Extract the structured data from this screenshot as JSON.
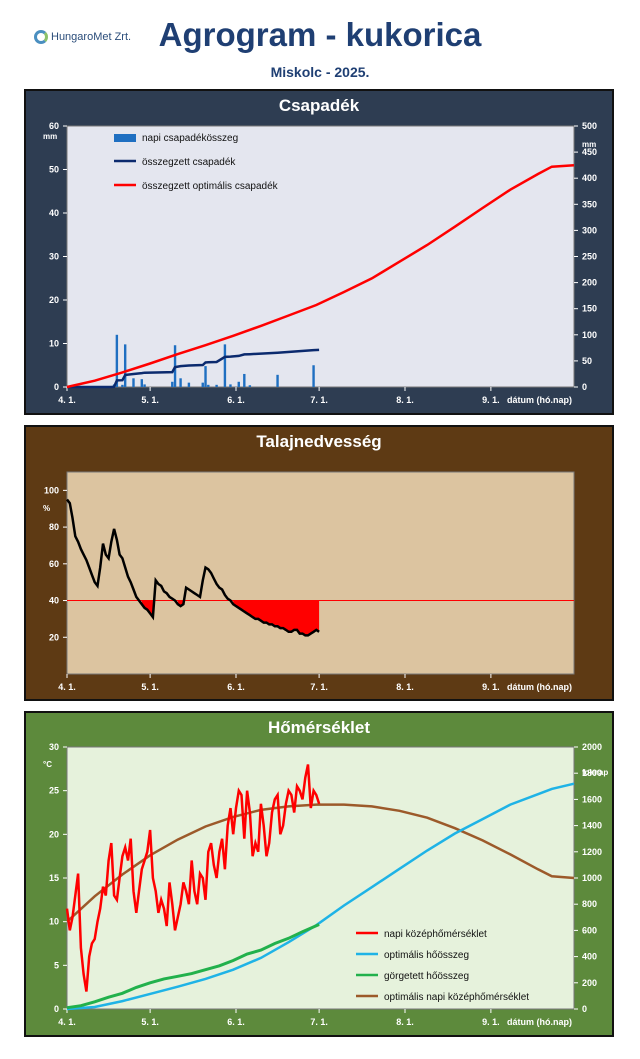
{
  "header": {
    "logo_text": "HungaroMet Zrt.",
    "title": "Agrogram - kukorica",
    "subtitle": "Miskolc  - 2025."
  },
  "x_ticks": [
    "4. 1.",
    "5. 1.",
    "6. 1.",
    "7. 1.",
    "8. 1.",
    "9. 1."
  ],
  "x_label": "dátum (hó.nap)",
  "chart_data": [
    {
      "type": "bar",
      "title": "Csapadék",
      "xlabel": "dátum (hó.nap)",
      "ylabel": "mm",
      "ylabel_right": "mm",
      "ylim": [
        0,
        60
      ],
      "ylim_right": [
        0,
        500
      ],
      "yticks": [
        0,
        10,
        20,
        30,
        40,
        50,
        60
      ],
      "yticks_right": [
        0,
        50,
        100,
        150,
        200,
        250,
        300,
        350,
        400,
        450,
        500
      ],
      "legend_position": "top-left",
      "colors": {
        "bg": "#2e3d52",
        "plot": "#e4e6ef",
        "bar": "#1f6fc1",
        "sum": "#0b2a6e",
        "opt": "#ff0000"
      },
      "series": [
        {
          "name": "napi csapadékösszeg",
          "axis": "left",
          "x": [
            17,
            18,
            20,
            21,
            24,
            27,
            28,
            38,
            39,
            41,
            44,
            49,
            50,
            51,
            54,
            57,
            59,
            62,
            64,
            66,
            76,
            89
          ],
          "values": [
            0.6,
            12.0,
            0.5,
            9.8,
            2.0,
            1.8,
            0.6,
            1.2,
            9.6,
            2.0,
            1.0,
            1.0,
            4.8,
            0.5,
            0.5,
            9.8,
            0.6,
            1.2,
            3.0,
            0.4,
            2.8,
            5.0
          ]
        },
        {
          "name": "összegzett csapadék",
          "axis": "right",
          "x": [
            0,
            16,
            17,
            18,
            20,
            21,
            24,
            27,
            28,
            38,
            39,
            41,
            44,
            49,
            50,
            51,
            54,
            57,
            59,
            62,
            64,
            66,
            76,
            89,
            91
          ],
          "values": [
            0,
            0,
            0.6,
            12.6,
            13.1,
            22.9,
            24.9,
            26.7,
            27.3,
            28.5,
            38.1,
            40.1,
            41.1,
            42.1,
            46.9,
            47.4,
            47.9,
            57.7,
            58.3,
            59.5,
            62.5,
            62.9,
            65.7,
            70.7,
            71
          ]
        },
        {
          "name": "összegzett optimális csapadék",
          "axis": "right",
          "x": [
            0,
            10,
            20,
            30,
            40,
            50,
            60,
            70,
            80,
            90,
            100,
            110,
            120,
            130,
            140,
            150,
            160,
            170,
            175,
            183
          ],
          "values": [
            0,
            12,
            28,
            45,
            63,
            80,
            98,
            117,
            137,
            157,
            182,
            208,
            240,
            272,
            307,
            343,
            378,
            408,
            422,
            425
          ]
        }
      ]
    },
    {
      "type": "line",
      "title": "Talajnedvesség",
      "xlabel": "dátum (hó.nap)",
      "ylabel": "%",
      "ylim": [
        0,
        110
      ],
      "yticks": [
        20,
        40,
        60,
        80,
        100
      ],
      "threshold": 40,
      "colors": {
        "bg": "#5e3a14",
        "plot": "#dcc4a0",
        "line": "#000000",
        "threshold": "#ff0000",
        "fill": "#ff0000"
      },
      "series": [
        {
          "name": "talajnedvesség",
          "x": [
            0,
            1,
            2,
            3,
            4,
            5,
            6,
            7,
            8,
            9,
            10,
            11,
            12,
            13,
            14,
            15,
            16,
            17,
            18,
            19,
            20,
            21,
            22,
            23,
            24,
            25,
            26,
            27,
            28,
            29,
            30,
            31,
            32,
            33,
            34,
            35,
            36,
            37,
            38,
            39,
            40,
            41,
            42,
            43,
            44,
            45,
            46,
            47,
            48,
            49,
            50,
            51,
            52,
            53,
            54,
            55,
            56,
            57,
            58,
            59,
            60,
            61,
            62,
            63,
            64,
            65,
            66,
            67,
            68,
            69,
            70,
            71,
            72,
            73,
            74,
            75,
            76,
            77,
            78,
            79,
            80,
            81,
            82,
            83,
            84,
            85,
            86,
            87,
            88,
            89,
            90,
            91
          ],
          "values": [
            95,
            93,
            85,
            75,
            72,
            68,
            65,
            62,
            58,
            54,
            50,
            48,
            58,
            71,
            65,
            63,
            72,
            79,
            73,
            65,
            63,
            58,
            53,
            50,
            46,
            42,
            40,
            38,
            36,
            35,
            33,
            31,
            51,
            49,
            48,
            45,
            44,
            42,
            41,
            40,
            38,
            37,
            38,
            47,
            46,
            45,
            44,
            43,
            42,
            51,
            58,
            57,
            55,
            52,
            49,
            47,
            46,
            43,
            41,
            40,
            38,
            37,
            36,
            35,
            34,
            33,
            32,
            31,
            30,
            30,
            29,
            28,
            28,
            27,
            27,
            26,
            26,
            25,
            25,
            24,
            23,
            23,
            24,
            24,
            22,
            22,
            21,
            21,
            22,
            23,
            24,
            23
          ]
        }
      ]
    },
    {
      "type": "line",
      "title": "Hőmérséklet",
      "xlabel": "dátum (hó.nap)",
      "ylabel": "°C",
      "ylabel_right": "foknap",
      "ylim": [
        0,
        30
      ],
      "ylim_right": [
        0,
        2000
      ],
      "yticks": [
        0,
        5,
        10,
        15,
        20,
        25,
        30
      ],
      "yticks_right": [
        0,
        200,
        400,
        600,
        800,
        1000,
        1200,
        1400,
        1600,
        1800,
        2000
      ],
      "legend_position": "bottom-right",
      "colors": {
        "bg": "#5d8a3c",
        "plot": "#e6f2dc",
        "daily": "#ff0000",
        "opt_sum": "#1fb3e6",
        "rolling": "#22b14c",
        "opt_daily": "#9c5a2a"
      },
      "series": [
        {
          "name": "napi középhőmérséklet",
          "axis": "left",
          "x": [
            0,
            1,
            2,
            3,
            4,
            5,
            6,
            7,
            8,
            9,
            10,
            11,
            12,
            13,
            14,
            15,
            16,
            17,
            18,
            19,
            20,
            21,
            22,
            23,
            24,
            25,
            26,
            27,
            28,
            29,
            30,
            31,
            32,
            33,
            34,
            35,
            36,
            37,
            38,
            39,
            40,
            41,
            42,
            43,
            44,
            45,
            46,
            47,
            48,
            49,
            50,
            51,
            52,
            53,
            54,
            55,
            56,
            57,
            58,
            59,
            60,
            61,
            62,
            63,
            64,
            65,
            66,
            67,
            68,
            69,
            70,
            71,
            72,
            73,
            74,
            75,
            76,
            77,
            78,
            79,
            80,
            81,
            82,
            83,
            84,
            85,
            86,
            87,
            88,
            89,
            90,
            91
          ],
          "values": [
            11.5,
            9.0,
            10.5,
            13.0,
            15.5,
            7.0,
            4.0,
            2.0,
            6.0,
            7.5,
            8.0,
            10.0,
            11.5,
            14.0,
            13.0,
            17.0,
            19.0,
            13.0,
            12.5,
            15.0,
            17.5,
            18.5,
            17.0,
            19.5,
            13.5,
            11.0,
            13.5,
            16.0,
            17.0,
            18.0,
            20.5,
            15.0,
            13.5,
            11.0,
            12.5,
            11.5,
            9.5,
            14.5,
            12.0,
            9.0,
            10.5,
            12.0,
            14.5,
            13.5,
            12.0,
            17.0,
            13.5,
            12.0,
            15.5,
            15.0,
            12.5,
            18.0,
            19.0,
            16.5,
            15.0,
            18.0,
            19.5,
            16.0,
            21.0,
            23.0,
            20.0,
            23.0,
            25.0,
            24.5,
            19.5,
            25.0,
            22.5,
            17.5,
            19.0,
            18.0,
            23.5,
            21.0,
            17.5,
            19.0,
            22.5,
            24.0,
            24.5,
            20.0,
            21.0,
            23.5,
            25.0,
            24.5,
            22.5,
            25.5,
            25.0,
            24.0,
            26.5,
            28.0,
            23.0,
            25.0,
            24.5,
            23.5
          ]
        },
        {
          "name": "optimális hőösszeg",
          "axis": "right",
          "x": [
            0,
            10,
            20,
            30,
            40,
            50,
            60,
            70,
            80,
            90,
            100,
            110,
            120,
            130,
            140,
            150,
            160,
            170,
            175,
            183
          ],
          "values": [
            0,
            15,
            60,
            115,
            170,
            230,
            300,
            390,
            510,
            640,
            790,
            930,
            1070,
            1210,
            1340,
            1450,
            1560,
            1640,
            1680,
            1720
          ]
        },
        {
          "name": "görgetett hőösszeg",
          "axis": "right",
          "x": [
            0,
            5,
            10,
            15,
            20,
            25,
            30,
            35,
            40,
            45,
            50,
            55,
            60,
            65,
            70,
            75,
            80,
            85,
            91
          ],
          "values": [
            10,
            25,
            55,
            90,
            120,
            165,
            200,
            230,
            250,
            270,
            300,
            330,
            370,
            420,
            450,
            500,
            540,
            590,
            645
          ]
        },
        {
          "name": "optimális napi középhőmérséklet",
          "axis": "left",
          "x": [
            0,
            10,
            20,
            30,
            40,
            50,
            60,
            70,
            80,
            90,
            100,
            110,
            120,
            130,
            140,
            150,
            160,
            170,
            175,
            183
          ],
          "values": [
            10.0,
            12.9,
            15.4,
            17.6,
            19.4,
            20.9,
            22.0,
            22.8,
            23.2,
            23.4,
            23.4,
            23.2,
            22.7,
            21.9,
            20.7,
            19.3,
            17.7,
            16.0,
            15.2,
            15.0
          ]
        }
      ]
    }
  ]
}
